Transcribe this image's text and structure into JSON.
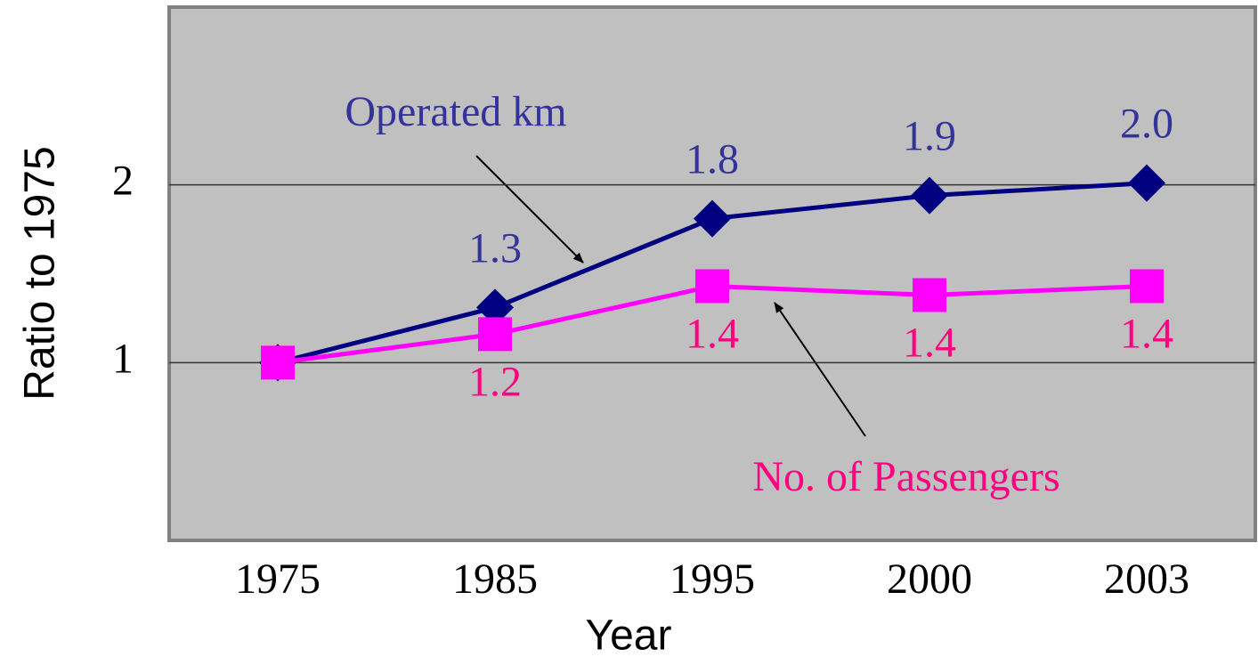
{
  "chart_data": {
    "type": "line",
    "x_label": "Year",
    "y_label": "Ratio to 1975",
    "categories": [
      "1975",
      "1985",
      "1995",
      "2000",
      "2003"
    ],
    "series": [
      {
        "name": "Operated km",
        "color": "#000080",
        "label_color": "#333399",
        "marker": "diamond",
        "values": [
          1.0,
          1.31,
          1.81,
          1.94,
          2.01
        ],
        "value_labels": [
          null,
          "1.3",
          "1.8",
          "1.9",
          "2.0"
        ]
      },
      {
        "name": "No. of Passengers",
        "color": "#ff00ff",
        "label_color": "#ff0080",
        "marker": "square",
        "values": [
          1.0,
          1.16,
          1.43,
          1.38,
          1.43
        ],
        "value_labels": [
          null,
          "1.2",
          "1.4",
          "1.4",
          "1.4"
        ]
      }
    ],
    "ylim": [
      0,
      3
    ],
    "yticks": [
      1,
      2
    ],
    "grid": true
  }
}
